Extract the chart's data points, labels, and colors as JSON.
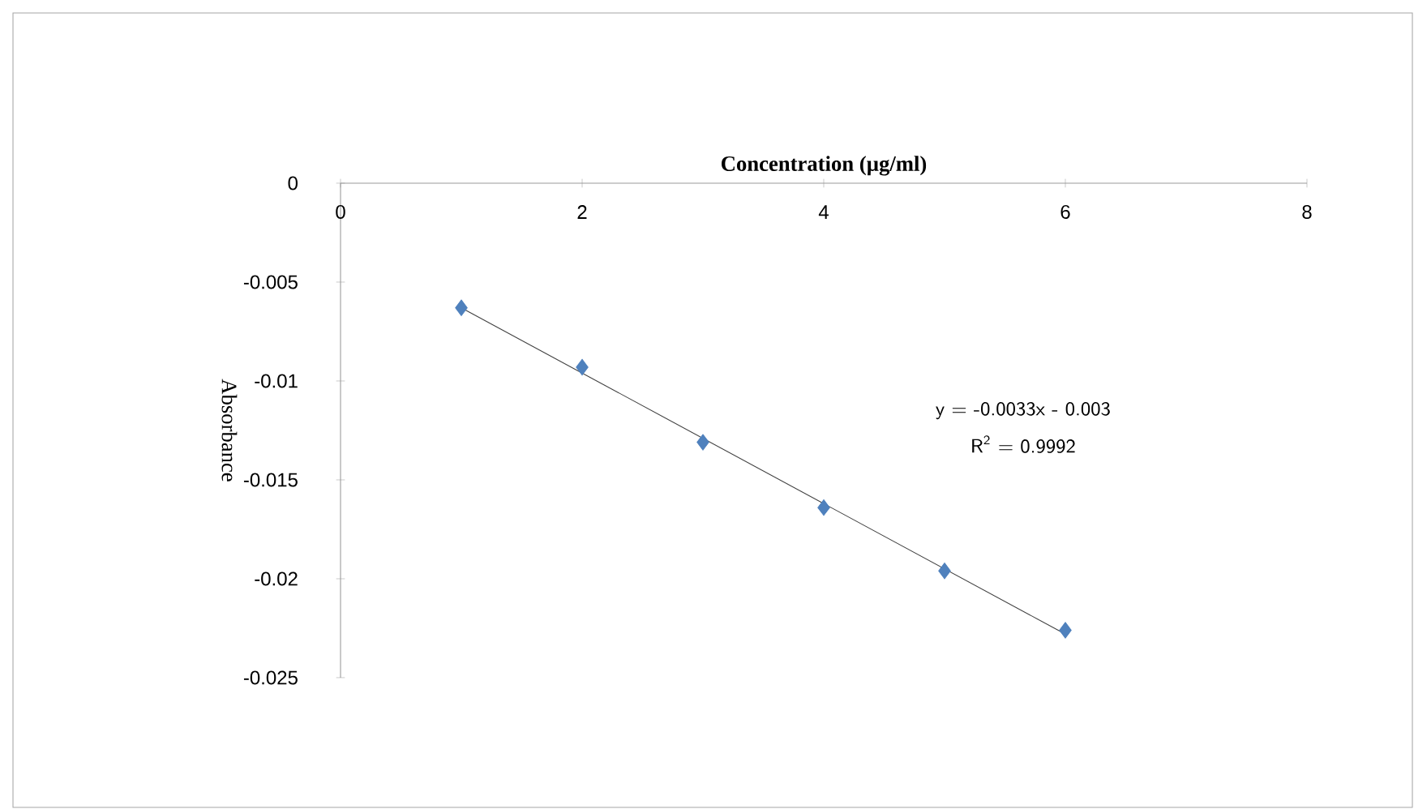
{
  "chart_data": {
    "type": "scatter",
    "xlabel": "Concentration (µg/ml)",
    "ylabel": "Absorbance",
    "series": [
      {
        "color": "#4f81bd",
        "marker": "diamond",
        "x": [
          1,
          2,
          3,
          4,
          5,
          6
        ],
        "values": [
          -0.0063,
          -0.0093,
          -0.0131,
          -0.0164,
          -0.0196,
          -0.0226
        ]
      },
      {
        "type": "line",
        "color": "#404040",
        "marker": "none",
        "x": [
          1,
          6
        ],
        "values": [
          -0.0063,
          -0.0228
        ]
      }
    ],
    "xlim": [
      0,
      8
    ],
    "ylim": [
      -0.025,
      0
    ],
    "xticks": [
      0,
      2,
      4,
      6,
      8
    ],
    "yticks": [
      0,
      -0.005,
      -0.01,
      -0.015,
      -0.02,
      -0.025
    ],
    "annotations": [
      "y = -0.0033x - 0.003",
      "R$^{2}$ = 0.9992"
    ],
    "grid": false
  }
}
